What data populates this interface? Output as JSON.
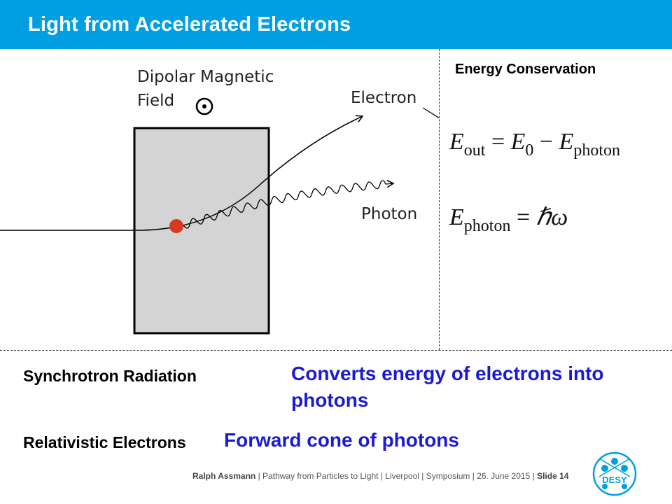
{
  "header": {
    "title": "Light from Accelerated Electrons"
  },
  "diagram": {
    "field_label_line1": "Dipolar Magnetic",
    "field_label_line2": "Field",
    "electron_label": "Electron",
    "photon_label": "Photon"
  },
  "equations": {
    "title": "Energy Conservation",
    "eq1": {
      "lhs": "E",
      "lhs_sub": "out",
      "rhs1": "E",
      "rhs1_sub": "0",
      "rhs2": "E",
      "rhs2_sub": "photon"
    },
    "eq2": {
      "lhs": "E",
      "lhs_sub": "photon",
      "rhs": "ℏω"
    }
  },
  "rows": [
    {
      "label": "Synchrotron Radiation",
      "value_line1": "Converts energy of electrons into",
      "value_line2": "photons"
    },
    {
      "label": "Relativistic Electrons",
      "value": "Forward cone of photons"
    }
  ],
  "footer": {
    "author": "Ralph Assmann",
    "text": "Pathway from Particles to Light | Liverpool | Symposium | 26. June 2015 |",
    "slide": "Slide 14"
  },
  "logo": {
    "text": "DESY"
  },
  "colors": {
    "header": "#009fe3",
    "accent_blue": "#1a1ad6",
    "electron_dot": "#d43a22",
    "field_box": "#d4d4d4"
  }
}
